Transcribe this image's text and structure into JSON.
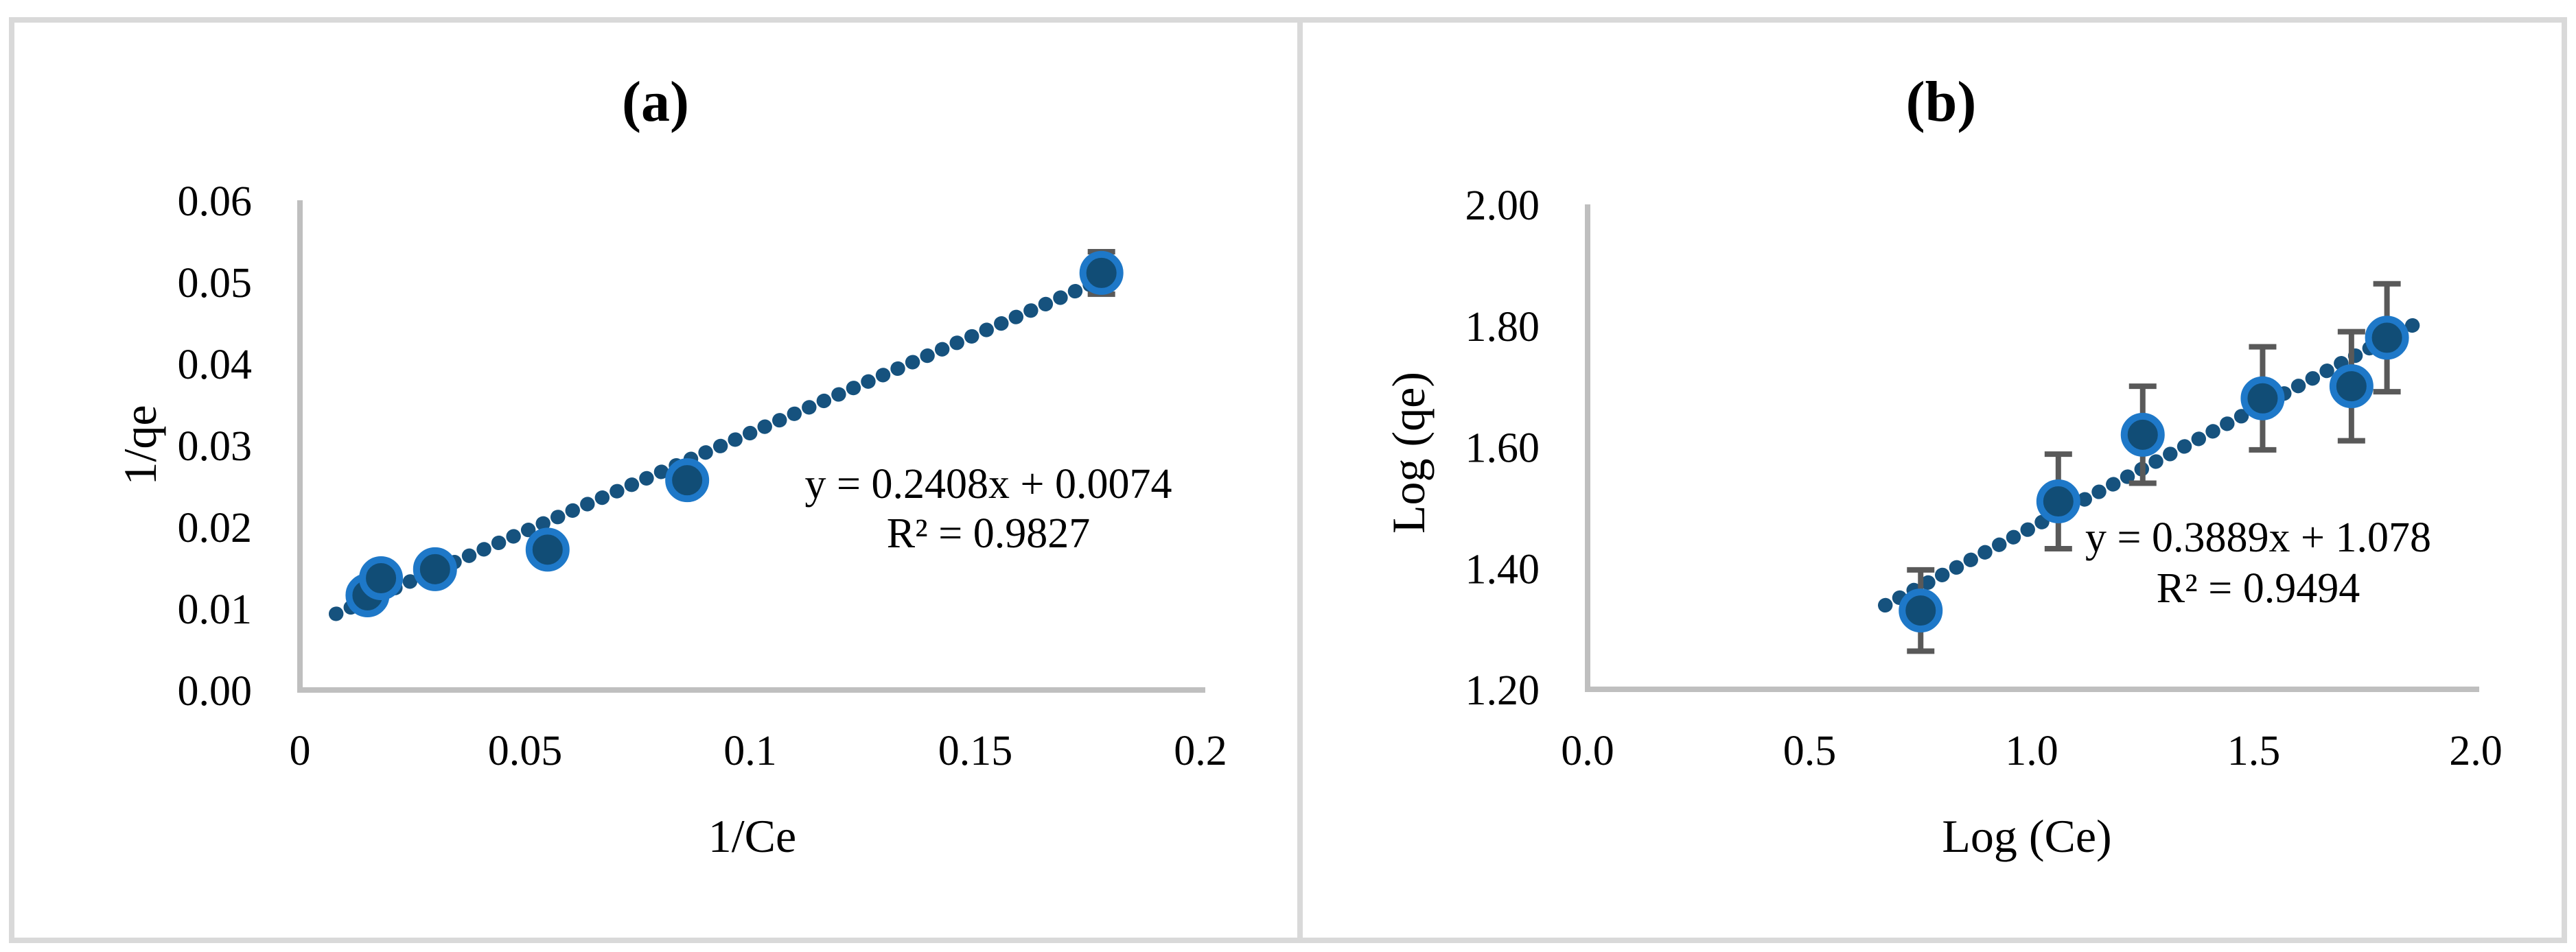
{
  "figure": {
    "background_color": "#FFFFFF",
    "frame_color": "#D9D9D9",
    "panel_count": 2
  },
  "colors": {
    "marker_fill": "#114D76",
    "marker_ring": "#1E78C8",
    "trendline": "#16527E",
    "error_bar": "#595959",
    "axis_line": "#BFBFBF",
    "text": "#000000"
  },
  "chart_data": [
    {
      "id": "a",
      "type": "scatter",
      "title": "(a)",
      "xlabel": "1/Ce",
      "ylabel": "1/qe",
      "xlim": [
        0,
        0.2
      ],
      "ylim": [
        0,
        0.06
      ],
      "x_tick_values": [
        0,
        0.05,
        0.1,
        0.15,
        0.2
      ],
      "x_tick_labels": [
        "0",
        "0.05",
        "0.1",
        "0.15",
        "0.2"
      ],
      "y_tick_values": [
        0,
        0.01,
        0.02,
        0.03,
        0.04,
        0.05,
        0.06
      ],
      "y_tick_labels": [
        "0.00",
        "0.01",
        "0.02",
        "0.03",
        "0.04",
        "0.05",
        "0.06"
      ],
      "grid": false,
      "legend": false,
      "points": [
        {
          "x": 0.015,
          "y": 0.0116,
          "yerr": 0
        },
        {
          "x": 0.018,
          "y": 0.0137,
          "yerr": 0
        },
        {
          "x": 0.03,
          "y": 0.0148,
          "yerr": 0
        },
        {
          "x": 0.055,
          "y": 0.0172,
          "yerr": 0
        },
        {
          "x": 0.086,
          "y": 0.0257,
          "yerr": 0
        },
        {
          "x": 0.178,
          "y": 0.0511,
          "yerr": 0.0026
        }
      ],
      "trendline": {
        "style": "dotted",
        "slope": 0.2408,
        "intercept": 0.0074,
        "x_start": 0.008,
        "x_end": 0.176
      },
      "equation": "y = 0.2408x + 0.0074",
      "r_squared": "R² = 0.9827"
    },
    {
      "id": "b",
      "type": "scatter",
      "title": "(b)",
      "xlabel": "Log (Ce)",
      "ylabel": "Log (qe)",
      "xlim": [
        0,
        2.0
      ],
      "ylim": [
        1.2,
        2.0
      ],
      "x_tick_values": [
        0,
        0.5,
        1.0,
        1.5,
        2.0
      ],
      "x_tick_labels": [
        "0.0",
        "0.5",
        "1.0",
        "1.5",
        "2.0"
      ],
      "y_tick_values": [
        1.2,
        1.4,
        1.6,
        1.8,
        2.0
      ],
      "y_tick_labels": [
        "1.20",
        "1.40",
        "1.60",
        "1.80",
        "2.00"
      ],
      "grid": false,
      "legend": false,
      "points": [
        {
          "x": 0.75,
          "y": 1.33,
          "yerr": 0.067
        },
        {
          "x": 1.06,
          "y": 1.51,
          "yerr": 0.078
        },
        {
          "x": 1.25,
          "y": 1.62,
          "yerr": 0.08
        },
        {
          "x": 1.52,
          "y": 1.68,
          "yerr": 0.085
        },
        {
          "x": 1.72,
          "y": 1.7,
          "yerr": 0.09
        },
        {
          "x": 1.8,
          "y": 1.78,
          "yerr": 0.089
        }
      ],
      "trendline": {
        "style": "dotted",
        "slope": 0.3889,
        "intercept": 1.078,
        "x_start": 0.67,
        "x_end": 1.88
      },
      "equation": "y = 0.3889x + 1.078",
      "r_squared": "R² = 0.9494"
    }
  ]
}
